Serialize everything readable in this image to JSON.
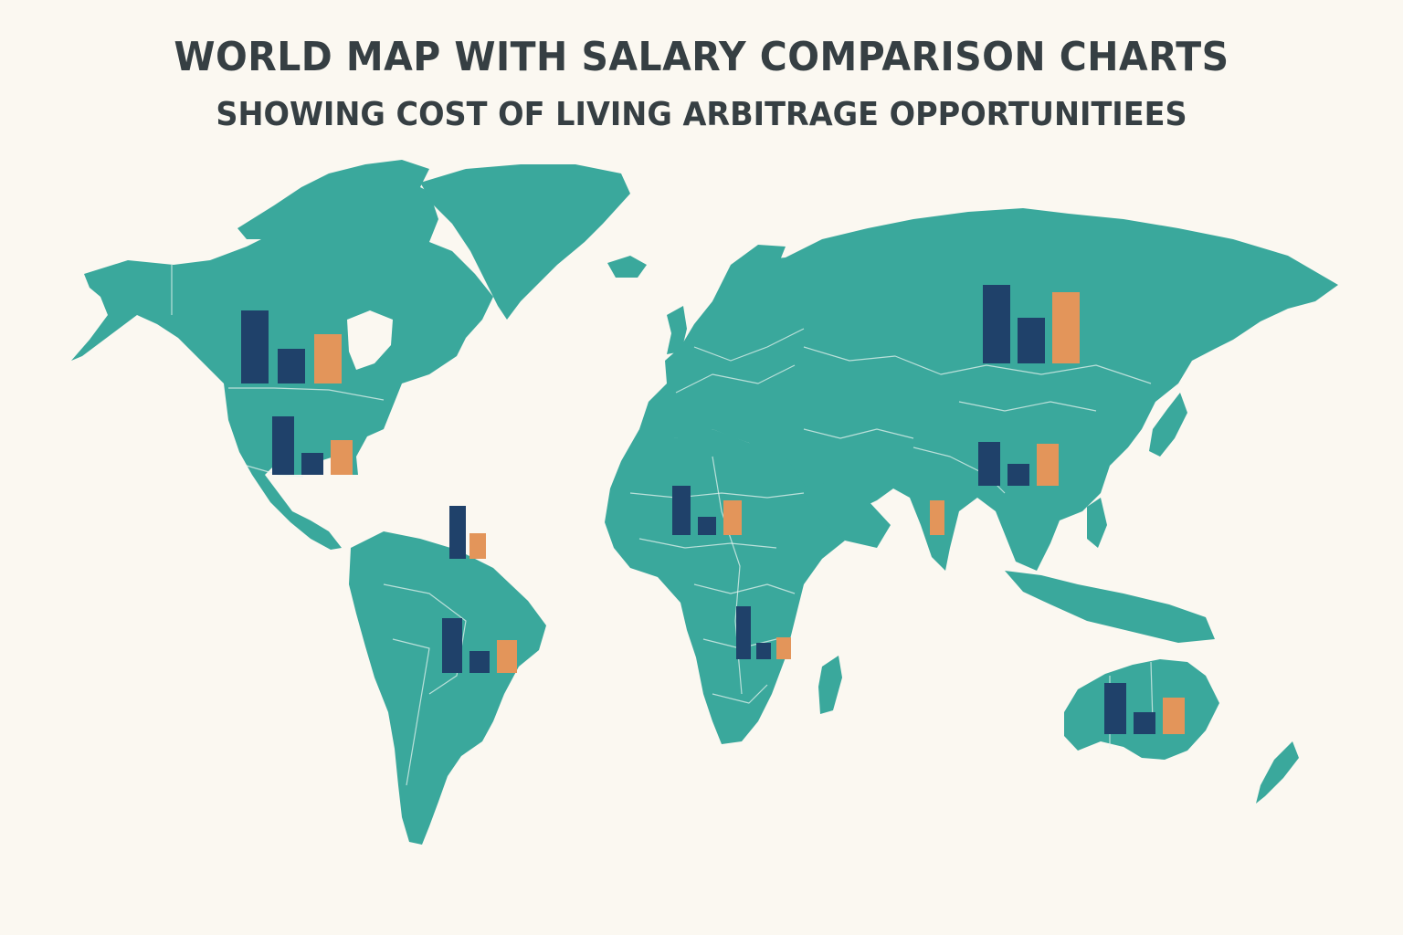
{
  "title": {
    "line1": "WORLD MAP WITH SALARY COMPARISON CHARTS",
    "line2": "SHOWING COST OF LIVING ARBITRAGE OPPORTUNITIEES"
  },
  "colors": {
    "background": "#fbf8f1",
    "land": "#3aa89c",
    "border": "#e6f3ef",
    "title": "#363f43",
    "bar_salary_high": "#1f416a",
    "bar_salary_low": "#1f416a",
    "bar_cost": "#e3955a"
  },
  "chart_data": [
    {
      "type": "bar",
      "region": "canada",
      "values": [
        80,
        38,
        54
      ]
    },
    {
      "type": "bar",
      "region": "united-states",
      "values": [
        64,
        24,
        38
      ]
    },
    {
      "type": "bar",
      "region": "caribbean",
      "values": [
        58,
        0,
        28
      ]
    },
    {
      "type": "bar",
      "region": "brazil",
      "values": [
        60,
        24,
        36
      ]
    },
    {
      "type": "bar",
      "region": "west-africa",
      "values": [
        54,
        20,
        38
      ]
    },
    {
      "type": "bar",
      "region": "central-africa",
      "values": [
        58,
        18,
        24
      ]
    },
    {
      "type": "bar",
      "region": "russia",
      "values": [
        86,
        50,
        78
      ]
    },
    {
      "type": "bar",
      "region": "india",
      "values": [
        0,
        0,
        38
      ]
    },
    {
      "type": "bar",
      "region": "china",
      "values": [
        48,
        24,
        46
      ]
    },
    {
      "type": "bar",
      "region": "australia",
      "values": [
        56,
        24,
        40
      ]
    }
  ]
}
